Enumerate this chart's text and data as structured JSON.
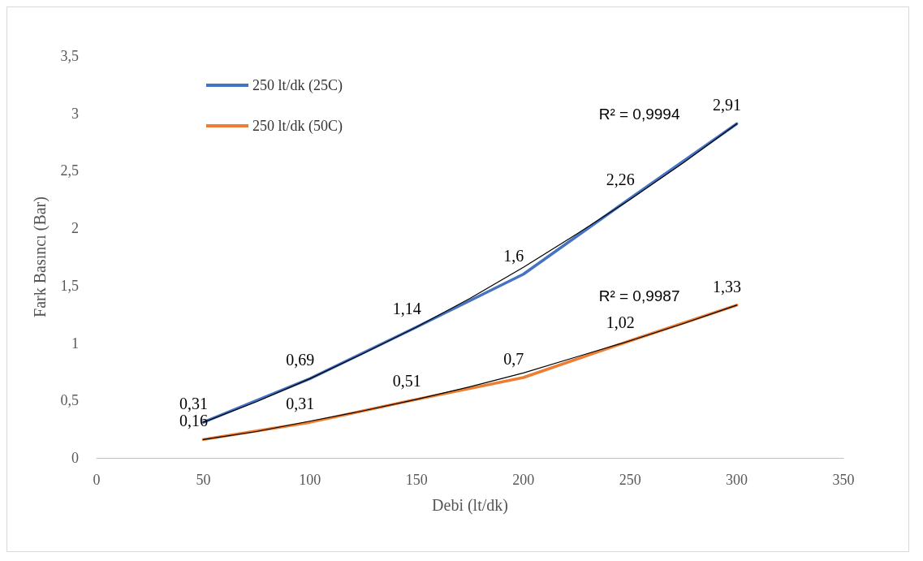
{
  "chart_data": {
    "type": "line",
    "xlabel": "Debi (lt/dk)",
    "ylabel": "Fark Basıncı (Bar)",
    "xlim": [
      0,
      350
    ],
    "xticks": [
      0,
      50,
      100,
      150,
      200,
      250,
      300,
      350
    ],
    "ylim": [
      0,
      3.5
    ],
    "yticks": [
      0,
      {
        "value": 0.5,
        "label": "0,5"
      },
      1,
      {
        "value": 1.5,
        "label": "1,5"
      },
      2,
      {
        "value": 2.5,
        "label": "2,5"
      },
      3,
      {
        "value": 3.5,
        "label": "3,5"
      }
    ],
    "grid": false,
    "legend": "top left",
    "marker": "none",
    "line_style": "solid",
    "x": [
      50,
      100,
      150,
      200,
      250,
      300
    ],
    "series": [
      {
        "name": "250 lt/dk (25C)",
        "color": "#4472c4",
        "values": [
          0.31,
          0.69,
          1.14,
          1.6,
          2.26,
          2.91
        ],
        "value_labels": [
          "0,31",
          "0,69",
          "1,14",
          "1,6",
          "2,26",
          "2,91"
        ]
      },
      {
        "name": "250 lt/dk (50C)",
        "color": "#ed7d31",
        "values": [
          0.16,
          0.31,
          0.51,
          0.7,
          1.02,
          1.33
        ],
        "value_labels": [
          "0,16",
          "0,31",
          "0,51",
          "0,7",
          "1,02",
          "1,33"
        ]
      },
      {
        "type": "line",
        "color": "#000000",
        "x": [
          50,
          75,
          100,
          125,
          150,
          175,
          200,
          225,
          250,
          275,
          300
        ],
        "values": [
          0.31,
          0.49,
          0.69,
          0.91,
          1.14,
          1.39,
          1.66,
          1.95,
          2.25,
          2.57,
          2.91
        ]
      },
      {
        "type": "line",
        "color": "#000000",
        "x": [
          50,
          75,
          100,
          125,
          150,
          175,
          200,
          225,
          250,
          275,
          300
        ],
        "values": [
          0.16,
          0.23,
          0.32,
          0.41,
          0.51,
          0.62,
          0.74,
          0.88,
          1.02,
          1.17,
          1.33
        ]
      }
    ],
    "annotations": [
      "R² = 0,9994",
      "R² = 0,9987"
    ]
  }
}
